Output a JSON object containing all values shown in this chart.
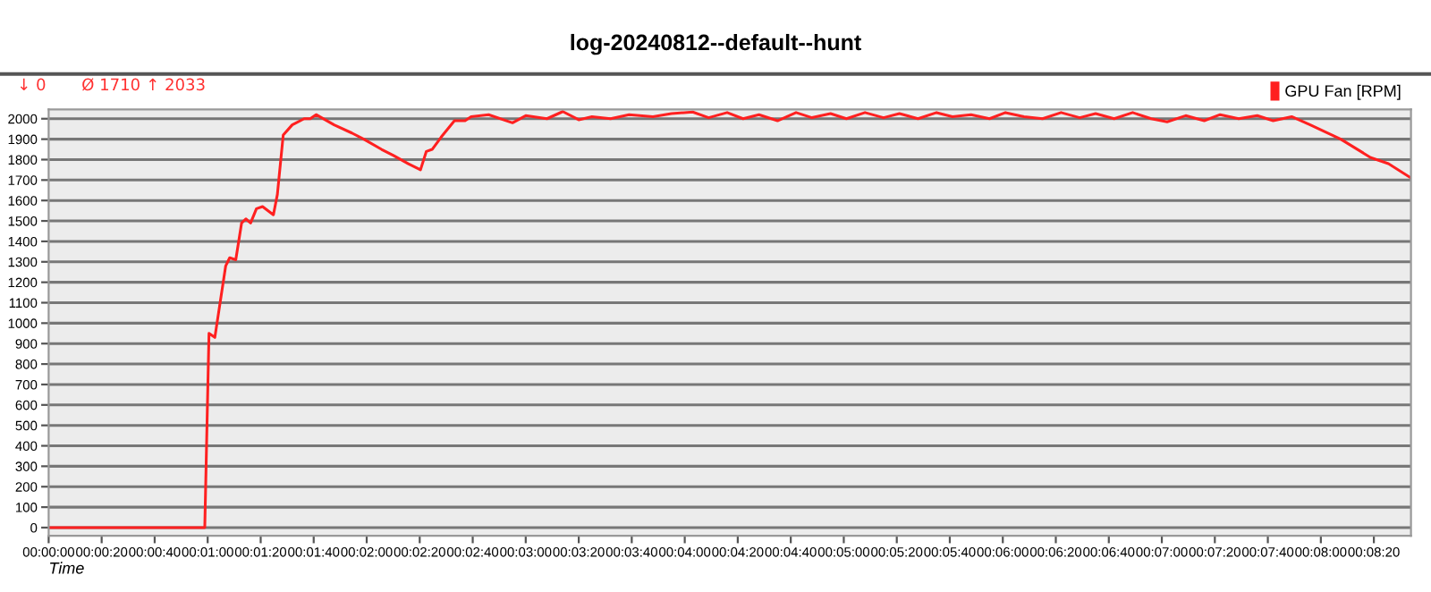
{
  "chart_data": {
    "type": "line",
    "title": "log-20240812--default--hunt",
    "xlabel": "Time",
    "annotations": [
      "↓ 0",
      "Ø 1710",
      "↑ 2033"
    ],
    "x": [
      0,
      58.9,
      60.5,
      62.7,
      66.8,
      68.3,
      70.6,
      72.8,
      74.4,
      76.2,
      78.4,
      80.7,
      84.8,
      86.3,
      88.5,
      91.9,
      96.4,
      98.7,
      100.9,
      107.7,
      114.4,
      118.9,
      125.6,
      130.1,
      135.7,
      140.3,
      142.5,
      144.7,
      148.1,
      153.1,
      157.1,
      159.4,
      166,
      175,
      180,
      188,
      194,
      200,
      205,
      212,
      219,
      228,
      235,
      243,
      249,
      256,
      262,
      268,
      275,
      282,
      288,
      295,
      301,
      308,
      315,
      321,
      328,
      335,
      341,
      348,
      355,
      361,
      368,
      375,
      382,
      389,
      395,
      402,
      409,
      416,
      422,
      429,
      436,
      442,
      449,
      456,
      462,
      469,
      476,
      487.5,
      498.8,
      505.5,
      514
    ],
    "series": [
      {
        "name": "GPU Fan [RPM]",
        "color": "#ff2020",
        "values": [
          0,
          0,
          950,
          930,
          1280,
          1320,
          1310,
          1490,
          1510,
          1490,
          1560,
          1570,
          1530,
          1630,
          1920,
          1970,
          2000,
          2000,
          2020,
          1970,
          1930,
          1900,
          1850,
          1820,
          1780,
          1750,
          1840,
          1850,
          1910,
          1990,
          1990,
          2010,
          2020,
          1980,
          2015,
          2000,
          2035,
          1995,
          2010,
          2000,
          2020,
          2010,
          2025,
          2033,
          2005,
          2030,
          2000,
          2020,
          1990,
          2030,
          2005,
          2025,
          2000,
          2030,
          2005,
          2025,
          2000,
          2030,
          2010,
          2020,
          2000,
          2030,
          2010,
          2000,
          2030,
          2005,
          2025,
          2000,
          2030,
          2000,
          1985,
          2015,
          1990,
          2020,
          2000,
          2015,
          1990,
          2010,
          1970,
          1900,
          1810,
          1780,
          1710
        ]
      }
    ],
    "xlim": [
      0,
      514
    ],
    "ylim": [
      -40,
      2045
    ],
    "xticks": [
      {
        "value": 0,
        "label": "00:00:00"
      },
      {
        "value": 20,
        "label": "00:00:20"
      },
      {
        "value": 40,
        "label": "00:00:40"
      },
      {
        "value": 60,
        "label": "00:01:00"
      },
      {
        "value": 80,
        "label": "00:01:20"
      },
      {
        "value": 100,
        "label": "00:01:40"
      },
      {
        "value": 120,
        "label": "00:02:00"
      },
      {
        "value": 140,
        "label": "00:02:20"
      },
      {
        "value": 160,
        "label": "00:02:40"
      },
      {
        "value": 180,
        "label": "00:03:00"
      },
      {
        "value": 200,
        "label": "00:03:20"
      },
      {
        "value": 220,
        "label": "00:03:40"
      },
      {
        "value": 240,
        "label": "00:04:00"
      },
      {
        "value": 260,
        "label": "00:04:20"
      },
      {
        "value": 280,
        "label": "00:04:40"
      },
      {
        "value": 300,
        "label": "00:05:00"
      },
      {
        "value": 320,
        "label": "00:05:20"
      },
      {
        "value": 340,
        "label": "00:05:40"
      },
      {
        "value": 360,
        "label": "00:06:00"
      },
      {
        "value": 380,
        "label": "00:06:20"
      },
      {
        "value": 400,
        "label": "00:06:40"
      },
      {
        "value": 420,
        "label": "00:07:00"
      },
      {
        "value": 440,
        "label": "00:07:20"
      },
      {
        "value": 460,
        "label": "00:07:40"
      },
      {
        "value": 480,
        "label": "00:08:00"
      },
      {
        "value": 500,
        "label": "00:08:20"
      }
    ],
    "yticks": [
      0,
      100,
      200,
      300,
      400,
      500,
      600,
      700,
      800,
      900,
      1000,
      1100,
      1200,
      1300,
      1400,
      1500,
      1600,
      1700,
      1800,
      1900,
      2000
    ],
    "grid": "y",
    "legend": "top right",
    "marker": "none",
    "line_style": "solid"
  }
}
